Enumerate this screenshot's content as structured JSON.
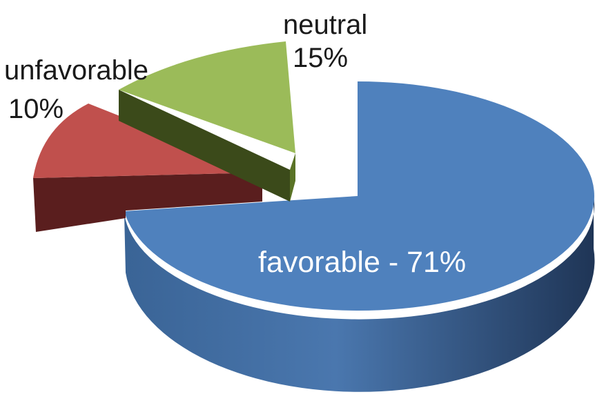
{
  "chart_data": {
    "type": "pie",
    "style": "3d-exploded",
    "slices": [
      {
        "label": "favorable",
        "value": 71,
        "value_label": "71%",
        "color": "#4F81BD"
      },
      {
        "label": "unfavorable",
        "value": 10,
        "value_label": "10%",
        "color": "#C0504D"
      },
      {
        "label": "neutral",
        "value": 15,
        "value_label": "15%",
        "color": "#9BBB59"
      }
    ],
    "labels": {
      "favorable": "favorable - 71%",
      "unfavorable_name": "unfavorable",
      "unfavorable_value": "10%",
      "neutral_name": "neutral",
      "neutral_value": "15%"
    }
  }
}
